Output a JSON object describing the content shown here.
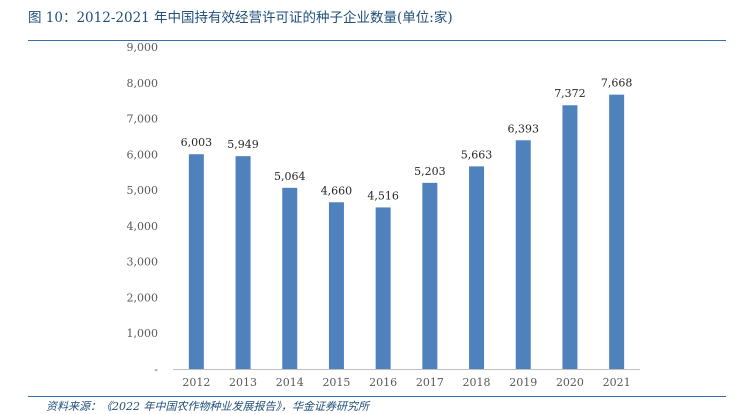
{
  "header": {
    "title": "图 10：2012-2021 年中国持有效经营许可证的种子企业数量(单位:家)"
  },
  "footer": {
    "source": "资料来源：《2022 年中国农作物种业发展报告》，华金证券研究所"
  },
  "colors": {
    "bar": "#4F81BD",
    "title": "#1F4E79",
    "axis": "#BFBFBF"
  },
  "chart_data": {
    "type": "bar",
    "title": "",
    "xlabel": "",
    "ylabel": "",
    "categories": [
      "2012",
      "2013",
      "2014",
      "2015",
      "2016",
      "2017",
      "2018",
      "2019",
      "2020",
      "2021"
    ],
    "values": [
      6003,
      5949,
      5064,
      4660,
      4516,
      5203,
      5663,
      6393,
      7372,
      7668
    ],
    "value_labels": [
      "6,003",
      "5,949",
      "5,064",
      "4,660",
      "4,516",
      "5,203",
      "5,663",
      "6,393",
      "7,372",
      "7,668"
    ],
    "ylim": [
      0,
      9000
    ],
    "yticks": [
      0,
      1000,
      2000,
      3000,
      4000,
      5000,
      6000,
      7000,
      8000,
      9000
    ],
    "ytick_labels": [
      "-",
      "1,000",
      "2,000",
      "3,000",
      "4,000",
      "5,000",
      "6,000",
      "7,000",
      "8,000",
      "9,000"
    ],
    "grid": false,
    "legend": "none"
  }
}
